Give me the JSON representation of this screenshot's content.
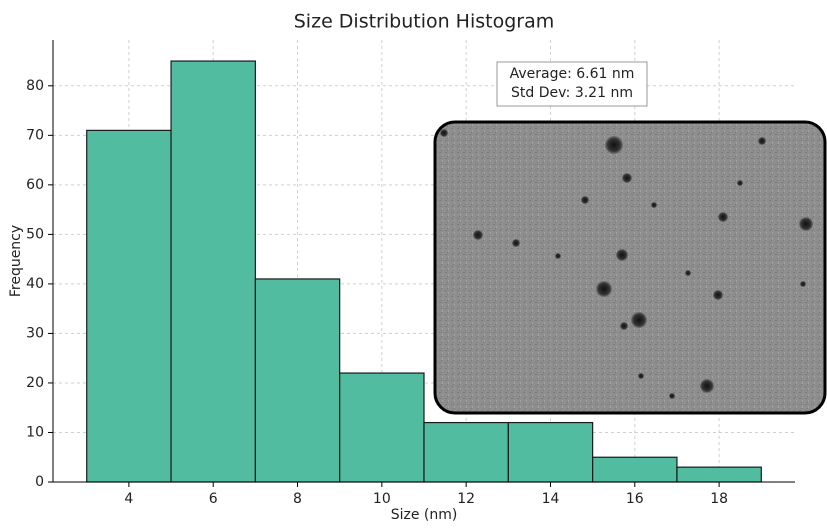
{
  "chart_data": {
    "type": "histogram",
    "title": "Size Distribution Histogram",
    "x_label": "Size (nm)",
    "y_label": "Frequency",
    "bins": [
      3,
      5,
      7,
      9,
      11,
      13,
      15,
      17,
      19
    ],
    "values": [
      71,
      85,
      41,
      22,
      12,
      12,
      5,
      3
    ],
    "color": "#52bca0",
    "edge_color": "#1a1a1a",
    "xlim": [
      2.2,
      19.8
    ],
    "xticks": [
      4,
      6,
      8,
      10,
      12,
      14,
      16,
      18
    ],
    "ylim": [
      0,
      89.25
    ],
    "yticks": [
      0,
      10,
      20,
      30,
      40,
      50,
      60,
      70,
      80
    ],
    "grid": true,
    "annotations": [
      "Average: 6.61 nm",
      "Std Dev: 3.21 nm"
    ]
  }
}
